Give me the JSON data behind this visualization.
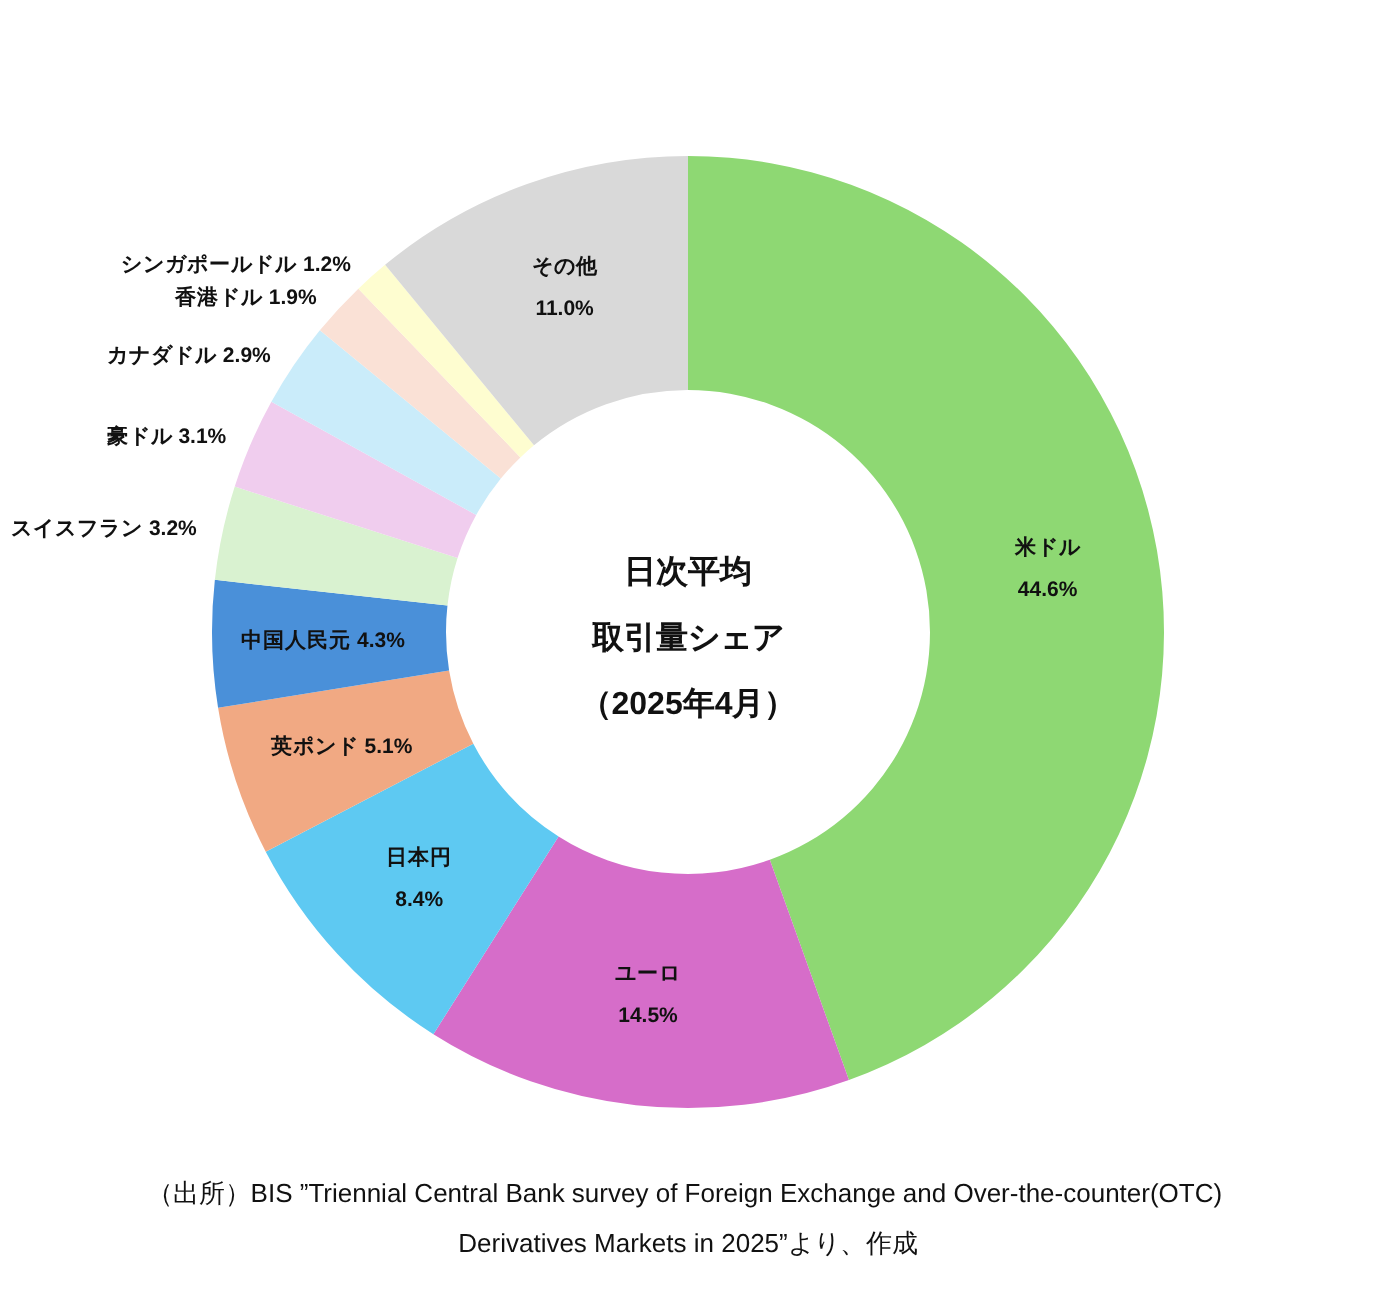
{
  "chart_data": {
    "type": "donut",
    "title": "日次平均取引量シェア",
    "subtitle": "（2025年4月）",
    "categories": [
      "米ドル",
      "ユーロ",
      "日本円",
      "英ポンド",
      "中国人民元",
      "スイスフラン",
      "豪ドル",
      "カナダドル",
      "香港ドル",
      "シンガポールドル",
      "その他"
    ],
    "values": [
      44.6,
      14.5,
      8.4,
      5.1,
      4.3,
      3.2,
      3.1,
      2.9,
      1.9,
      1.2,
      11.0
    ],
    "value_labels": [
      "44.6%",
      "14.5%",
      "8.4%",
      "5.1%",
      "4.3%",
      "3.2%",
      "3.1%",
      "2.9%",
      "1.9%",
      "1.2%",
      "11.0%"
    ],
    "colors": [
      "#8ed873",
      "#d66dc9",
      "#5ec9f2",
      "#f1a983",
      "#4a90d9",
      "#d9f2d0",
      "#f0cdee",
      "#caecfa",
      "#fae1d6",
      "#fefdd0",
      "#d9d9d9"
    ],
    "annotations": [
      "（出所）BIS ”Triennial Central Bank survey of Foreign Exchange and Over-the-counter(OTC) Derivatives Markets in 2025”より、作成"
    ]
  }
}
